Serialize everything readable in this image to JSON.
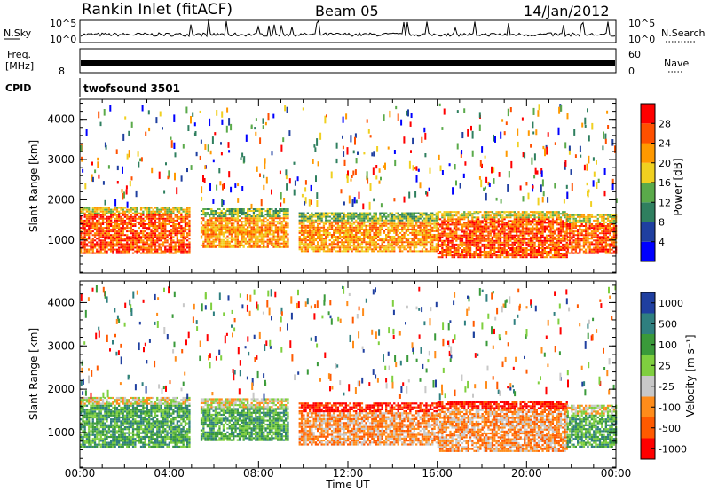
{
  "header": {
    "title": "Rankin Inlet (fitACF)",
    "beam": "Beam 05",
    "date": "14/Jan/2012"
  },
  "top_panels": {
    "nsky_label": "N.Sky",
    "nsearch_label": "N.Search",
    "nsky_ticks": [
      "10^5",
      "10^0"
    ],
    "nsearch_ticks": [
      "10^5",
      "10^0"
    ],
    "freq_label_1": "Freq.",
    "freq_label_2": "[MHz]",
    "freq_ticks": [
      "8"
    ],
    "nave_label": "Nave",
    "nave_ticks": [
      "60",
      "0"
    ],
    "cpid_label": "CPID",
    "cpid_value": "twofsound 3501"
  },
  "colors": {
    "power": [
      "#0000ff",
      "#1f3fa0",
      "#2f7f5f",
      "#5aaa4a",
      "#f0d020",
      "#ff9900",
      "#ff5000",
      "#ff0000"
    ],
    "velocity": [
      "#ff0000",
      "#ff5a00",
      "#ff8c1a",
      "#c8c8c8",
      "#7fcf3f",
      "#3a9a3a",
      "#2f7f7f",
      "#1f3fa0"
    ]
  },
  "chart_data": [
    {
      "type": "heatmap",
      "name": "power",
      "ylabel": "Slant Range [km]",
      "xlabel": "",
      "x_ticks": [
        "00:00",
        "04:00",
        "08:00",
        "12:00",
        "16:00",
        "20:00",
        "00:00"
      ],
      "y_ticks": [
        1000,
        2000,
        3000,
        4000
      ],
      "ylim": [
        180,
        4500
      ],
      "colorbar_label": "Power [dB]",
      "colorbar_ticks": [
        4,
        8,
        12,
        16,
        20,
        24,
        28
      ],
      "echo_bands": [
        {
          "t0": 0.0,
          "t1": 4.9,
          "r0": 650,
          "r1": 1800,
          "level": 6
        },
        {
          "t0": 5.4,
          "t1": 9.3,
          "r0": 800,
          "r1": 1750,
          "level": 5
        },
        {
          "t0": 9.8,
          "t1": 16.0,
          "r0": 700,
          "r1": 1650,
          "level": 5
        },
        {
          "t0": 16.0,
          "t1": 21.8,
          "r0": 550,
          "r1": 1700,
          "level": 6
        },
        {
          "t0": 21.8,
          "t1": 24.0,
          "r0": 650,
          "r1": 1600,
          "level": 6
        }
      ]
    },
    {
      "type": "heatmap",
      "name": "velocity",
      "ylabel": "Slant Range [km]",
      "xlabel": "Time UT",
      "x_ticks": [
        "00:00",
        "04:00",
        "08:00",
        "12:00",
        "16:00",
        "20:00",
        "00:00"
      ],
      "y_ticks": [
        1000,
        2000,
        3000,
        4000
      ],
      "ylim": [
        180,
        4500
      ],
      "colorbar_label": "Velocity [m s⁻¹]",
      "colorbar_ticks": [
        "1000",
        "500",
        "100",
        "25",
        "-25",
        "-100",
        "-500",
        "-1000"
      ],
      "echo_bands": [
        {
          "t0": 0.0,
          "t1": 4.9,
          "r0": 650,
          "r1": 1800,
          "level": 5
        },
        {
          "t0": 5.4,
          "t1": 9.3,
          "r0": 800,
          "r1": 1750,
          "level": 5
        },
        {
          "t0": 9.8,
          "t1": 16.0,
          "r0": 700,
          "r1": 1650,
          "level": 2
        },
        {
          "t0": 16.0,
          "t1": 21.8,
          "r0": 550,
          "r1": 1700,
          "level": 2
        },
        {
          "t0": 21.8,
          "t1": 24.0,
          "r0": 650,
          "r1": 1600,
          "level": 5
        }
      ]
    }
  ]
}
